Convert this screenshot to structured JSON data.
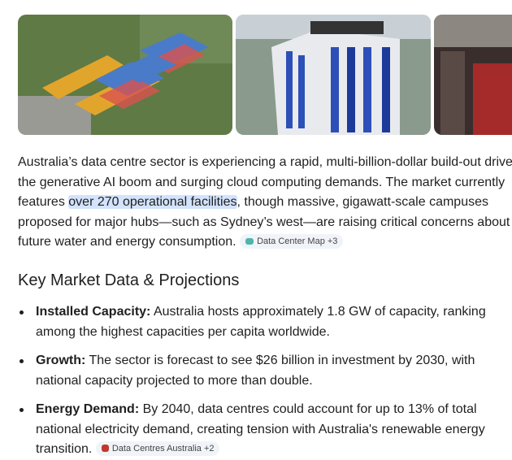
{
  "intro": {
    "text_before": "Australia’s data centre sector is experiencing a rapid, multi-billion-dollar build-out driven by the generative AI boom and surging cloud computing demands. The market currently features ",
    "highlight": "over 270 operational facilities",
    "text_after": ", though massive, gigawatt-scale campuses proposed for major hubs—such as Sydney’s west—are raising critical concerns about future water and energy consumption.",
    "source_chip": "Data Center Map +3"
  },
  "section": {
    "heading": "Key Market Data & Projections",
    "items": [
      {
        "label": "Installed Capacity:",
        "text": " Australia hosts approximately 1.8 GW of capacity, ranking among the highest capacities per capita worldwide."
      },
      {
        "label": "Growth:",
        "text": " The sector is forecast to see $26 billion in investment by 2030, with national capacity projected to more than double."
      },
      {
        "label": "Energy Demand:",
        "text": " By 2040, data centres could account for up to 13% of total national electricity demand, creating tension with Australia's renewable energy transition.",
        "source_chip": "Data Centres Australia +2"
      }
    ]
  }
}
